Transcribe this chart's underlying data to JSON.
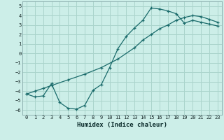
{
  "xlabel": "Humidex (Indice chaleur)",
  "background_color": "#cceee8",
  "line_color": "#1a6b6b",
  "grid_color": "#aad4cc",
  "xlim": [
    -0.5,
    23.5
  ],
  "ylim": [
    -6.5,
    5.5
  ],
  "yticks": [
    -6,
    -5,
    -4,
    -3,
    -2,
    -1,
    0,
    1,
    2,
    3,
    4,
    5
  ],
  "xticks": [
    0,
    1,
    2,
    3,
    4,
    5,
    6,
    7,
    8,
    9,
    10,
    11,
    12,
    13,
    14,
    15,
    16,
    17,
    18,
    19,
    20,
    21,
    22,
    23
  ],
  "curve1_x": [
    0,
    1,
    2,
    3,
    4,
    5,
    6,
    7,
    8,
    9,
    10,
    11,
    12,
    13,
    14,
    15,
    16,
    17,
    18,
    19,
    20,
    21,
    22,
    23
  ],
  "curve1_y": [
    -4.3,
    -4.6,
    -4.5,
    -3.2,
    -5.2,
    -5.8,
    -5.9,
    -5.5,
    -3.9,
    -3.3,
    -1.5,
    0.5,
    1.8,
    2.7,
    3.5,
    4.8,
    4.7,
    4.5,
    4.2,
    3.2,
    3.5,
    3.3,
    3.1,
    2.9
  ],
  "curve2_x": [
    0,
    1,
    2,
    3,
    5,
    7,
    9,
    11,
    13,
    14,
    15,
    16,
    17,
    18,
    19,
    20,
    21,
    22,
    23
  ],
  "curve2_y": [
    -4.3,
    -4.0,
    -3.7,
    -3.4,
    -2.8,
    -2.2,
    -1.5,
    -0.6,
    0.6,
    1.4,
    2.0,
    2.6,
    3.0,
    3.5,
    3.8,
    4.0,
    3.9,
    3.6,
    3.3
  ]
}
